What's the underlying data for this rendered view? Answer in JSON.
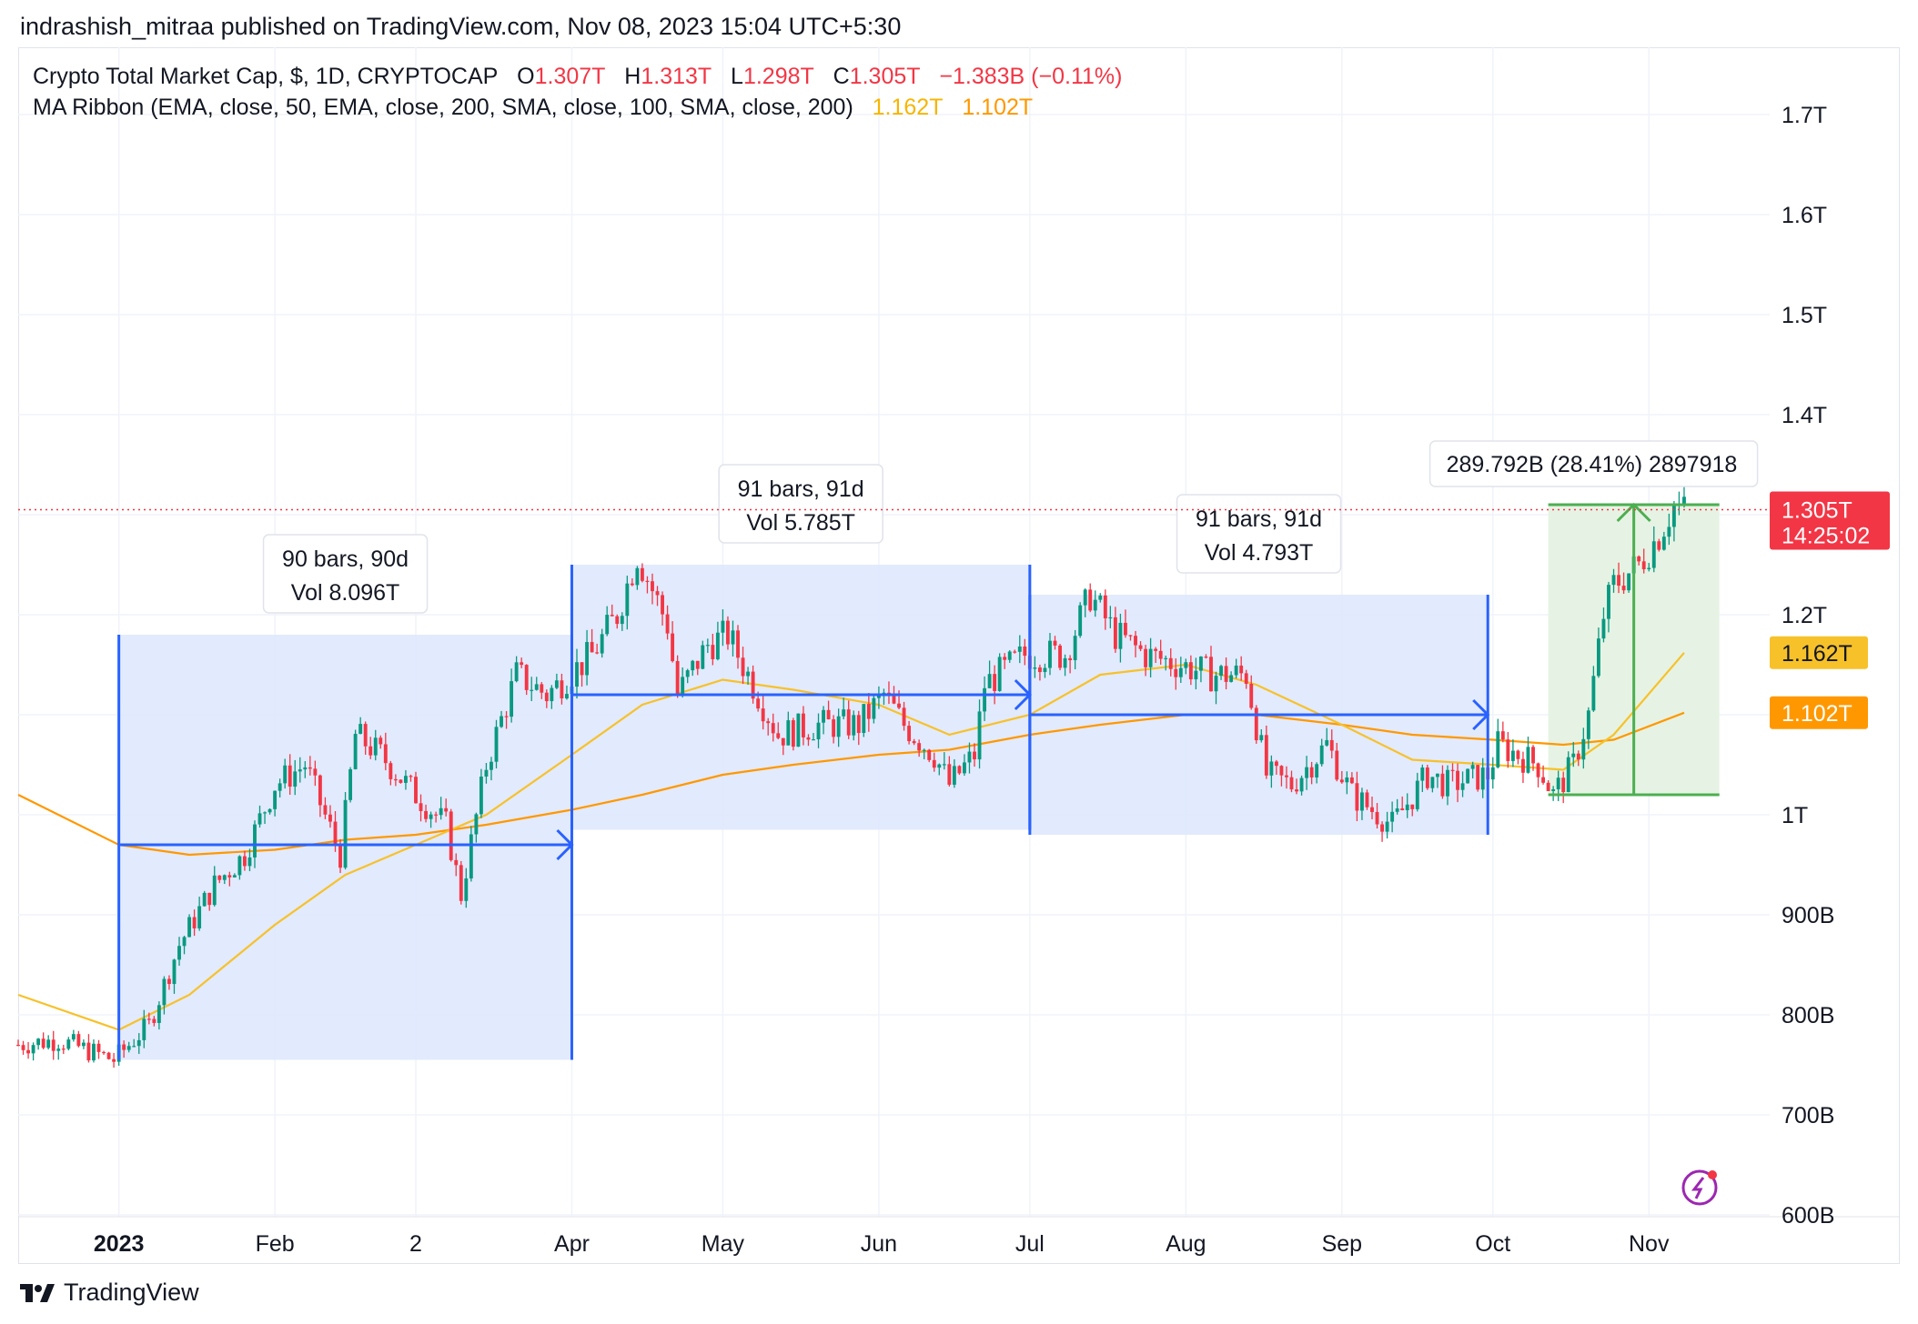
{
  "header": {
    "publisher_line": "indrashish_mitraa published on TradingView.com, Nov 08, 2023 15:04 UTC+5:30"
  },
  "legend": {
    "title": "Crypto Total Market Cap, $, 1D, CRYPTOCAP",
    "o_label": "O",
    "o_value": "1.307T",
    "h_label": "H",
    "h_value": "1.313T",
    "l_label": "L",
    "l_value": "1.298T",
    "c_label": "C",
    "c_value": "1.305T",
    "change": "−1.383B (−0.11%)",
    "ma_title": "MA Ribbon (EMA, close, 50, EMA, close, 200, SMA, close, 100, SMA, close, 200)",
    "ma_value_1": "1.162T",
    "ma_value_2": "1.102T"
  },
  "footer": {
    "brand": "TradingView",
    "logo_text": "17"
  },
  "colors": {
    "up": "#089981",
    "down": "#f23645",
    "ema50": "#f7c12a",
    "ema200": "#ff9800",
    "range_fill": "#dde6fd",
    "range_line": "#2962ff",
    "measure_fill": "#e6f3e4",
    "measure_line": "#4caf50",
    "grid": "#f0f3fa"
  },
  "chart_data": {
    "type": "candlestick",
    "title": "Crypto Total Market Cap, $, 1D, CRYPTOCAP",
    "ylim": [
      0.56,
      1.76
    ],
    "x_range": [
      "2022-12-12",
      "2023-11-25"
    ],
    "y_ticks": [
      {
        "value": 1.7,
        "label": "1.7T"
      },
      {
        "value": 1.6,
        "label": "1.6T"
      },
      {
        "value": 1.5,
        "label": "1.5T"
      },
      {
        "value": 1.4,
        "label": "1.4T"
      },
      {
        "value": 1.3,
        "label": "1.3T"
      },
      {
        "value": 1.2,
        "label": "1.2T"
      },
      {
        "value": 1.1,
        "label": "1.1T"
      },
      {
        "value": 1.0,
        "label": "1T"
      },
      {
        "value": 0.9,
        "label": "900B"
      },
      {
        "value": 0.8,
        "label": "800B"
      },
      {
        "value": 0.7,
        "label": "700B"
      },
      {
        "value": 0.6,
        "label": "600B"
      }
    ],
    "x_ticks": [
      {
        "date": "2023-01-01",
        "label": "2023",
        "bold": true
      },
      {
        "date": "2023-02-01",
        "label": "Feb"
      },
      {
        "date": "2023-03-01",
        "label": "2"
      },
      {
        "date": "2023-04-01",
        "label": "Apr"
      },
      {
        "date": "2023-05-01",
        "label": "May"
      },
      {
        "date": "2023-06-01",
        "label": "Jun"
      },
      {
        "date": "2023-07-01",
        "label": "Jul"
      },
      {
        "date": "2023-08-01",
        "label": "Aug"
      },
      {
        "date": "2023-09-01",
        "label": "Sep"
      },
      {
        "date": "2023-10-01",
        "label": "Oct"
      },
      {
        "date": "2023-11-01",
        "label": "Nov"
      }
    ],
    "close_path": [
      [
        "2022-12-12",
        0.77
      ],
      [
        "2022-12-20",
        0.775
      ],
      [
        "2022-12-31",
        0.755
      ],
      [
        "2023-01-07",
        0.79
      ],
      [
        "2023-01-13",
        0.87
      ],
      [
        "2023-01-20",
        0.93
      ],
      [
        "2023-01-26",
        0.96
      ],
      [
        "2023-02-01",
        1.03
      ],
      [
        "2023-02-07",
        1.05
      ],
      [
        "2023-02-14",
        0.96
      ],
      [
        "2023-02-17",
        1.08
      ],
      [
        "2023-02-22",
        1.06
      ],
      [
        "2023-03-01",
        1.02
      ],
      [
        "2023-03-07",
        0.99
      ],
      [
        "2023-03-10",
        0.92
      ],
      [
        "2023-03-15",
        1.05
      ],
      [
        "2023-03-21",
        1.14
      ],
      [
        "2023-03-27",
        1.12
      ],
      [
        "2023-04-05",
        1.16
      ],
      [
        "2023-04-10",
        1.2
      ],
      [
        "2023-04-14",
        1.26
      ],
      [
        "2023-04-20",
        1.19
      ],
      [
        "2023-04-22",
        1.12
      ],
      [
        "2023-04-28",
        1.17
      ],
      [
        "2023-05-02",
        1.18
      ],
      [
        "2023-05-08",
        1.12
      ],
      [
        "2023-05-12",
        1.08
      ],
      [
        "2023-05-20",
        1.09
      ],
      [
        "2023-05-28",
        1.09
      ],
      [
        "2023-06-02",
        1.12
      ],
      [
        "2023-06-06",
        1.09
      ],
      [
        "2023-06-12",
        1.06
      ],
      [
        "2023-06-15",
        1.03
      ],
      [
        "2023-06-20",
        1.06
      ],
      [
        "2023-06-22",
        1.13
      ],
      [
        "2023-06-30",
        1.16
      ],
      [
        "2023-07-08",
        1.16
      ],
      [
        "2023-07-13",
        1.22
      ],
      [
        "2023-07-18",
        1.18
      ],
      [
        "2023-07-24",
        1.16
      ],
      [
        "2023-07-31",
        1.15
      ],
      [
        "2023-08-06",
        1.14
      ],
      [
        "2023-08-13",
        1.14
      ],
      [
        "2023-08-17",
        1.04
      ],
      [
        "2023-08-22",
        1.03
      ],
      [
        "2023-08-29",
        1.07
      ],
      [
        "2023-09-03",
        1.02
      ],
      [
        "2023-09-11",
        0.99
      ],
      [
        "2023-09-18",
        1.04
      ],
      [
        "2023-09-22",
        1.03
      ],
      [
        "2023-09-30",
        1.04
      ],
      [
        "2023-10-02",
        1.07
      ],
      [
        "2023-10-10",
        1.05
      ],
      [
        "2023-10-13",
        1.02
      ],
      [
        "2023-10-17",
        1.05
      ],
      [
        "2023-10-20",
        1.1
      ],
      [
        "2023-10-23",
        1.2
      ],
      [
        "2023-10-25",
        1.23
      ],
      [
        "2023-10-30",
        1.25
      ],
      [
        "2023-11-03",
        1.28
      ],
      [
        "2023-11-06",
        1.31
      ],
      [
        "2023-11-08",
        1.305
      ]
    ],
    "ema_50": [
      [
        "2022-12-12",
        0.82
      ],
      [
        "2023-01-01",
        0.785
      ],
      [
        "2023-01-15",
        0.82
      ],
      [
        "2023-02-01",
        0.89
      ],
      [
        "2023-02-15",
        0.94
      ],
      [
        "2023-03-01",
        0.97
      ],
      [
        "2023-03-15",
        1.0
      ],
      [
        "2023-04-01",
        1.06
      ],
      [
        "2023-04-15",
        1.11
      ],
      [
        "2023-05-01",
        1.135
      ],
      [
        "2023-05-15",
        1.125
      ],
      [
        "2023-06-01",
        1.11
      ],
      [
        "2023-06-15",
        1.08
      ],
      [
        "2023-07-01",
        1.1
      ],
      [
        "2023-07-15",
        1.14
      ],
      [
        "2023-08-01",
        1.15
      ],
      [
        "2023-08-15",
        1.13
      ],
      [
        "2023-09-01",
        1.09
      ],
      [
        "2023-09-15",
        1.055
      ],
      [
        "2023-10-01",
        1.05
      ],
      [
        "2023-10-15",
        1.045
      ],
      [
        "2023-10-25",
        1.08
      ],
      [
        "2023-11-08",
        1.162
      ]
    ],
    "ema_200": [
      [
        "2022-12-12",
        1.02
      ],
      [
        "2023-01-01",
        0.97
      ],
      [
        "2023-01-15",
        0.96
      ],
      [
        "2023-02-01",
        0.965
      ],
      [
        "2023-02-15",
        0.975
      ],
      [
        "2023-03-01",
        0.98
      ],
      [
        "2023-03-15",
        0.99
      ],
      [
        "2023-04-01",
        1.005
      ],
      [
        "2023-04-15",
        1.02
      ],
      [
        "2023-05-01",
        1.04
      ],
      [
        "2023-05-15",
        1.05
      ],
      [
        "2023-06-01",
        1.06
      ],
      [
        "2023-06-15",
        1.065
      ],
      [
        "2023-07-01",
        1.08
      ],
      [
        "2023-07-15",
        1.09
      ],
      [
        "2023-08-01",
        1.1
      ],
      [
        "2023-08-15",
        1.1
      ],
      [
        "2023-09-01",
        1.09
      ],
      [
        "2023-09-15",
        1.08
      ],
      [
        "2023-10-01",
        1.075
      ],
      [
        "2023-10-15",
        1.07
      ],
      [
        "2023-10-25",
        1.075
      ],
      [
        "2023-11-08",
        1.102
      ]
    ],
    "last_price": {
      "value": 1.305,
      "label": "1.305T",
      "countdown": "14:25:02"
    },
    "ma_labels": [
      {
        "value": 1.162,
        "label": "1.162T",
        "series": "EMA 50"
      },
      {
        "value": 1.102,
        "label": "1.102T",
        "series": "EMA 200"
      }
    ],
    "ranges": [
      {
        "start": "2023-01-01",
        "end": "2023-04-01",
        "low": 0.755,
        "high": 1.18,
        "mid": 0.97,
        "line1": "90 bars, 90d",
        "line2": "Vol 8.096T"
      },
      {
        "start": "2023-04-01",
        "end": "2023-07-01",
        "low": 0.985,
        "high": 1.25,
        "mid": 1.12,
        "line1": "91 bars, 91d",
        "line2": "Vol 5.785T"
      },
      {
        "start": "2023-07-01",
        "end": "2023-09-30",
        "low": 0.98,
        "high": 1.22,
        "mid": 1.1,
        "line1": "91 bars, 91d",
        "line2": "Vol 4.793T"
      }
    ],
    "measure": {
      "start": "2023-10-12",
      "end": "2023-11-15",
      "low": 1.02,
      "high": 1.31,
      "label": "289.792B (28.41%) 2897918"
    }
  }
}
